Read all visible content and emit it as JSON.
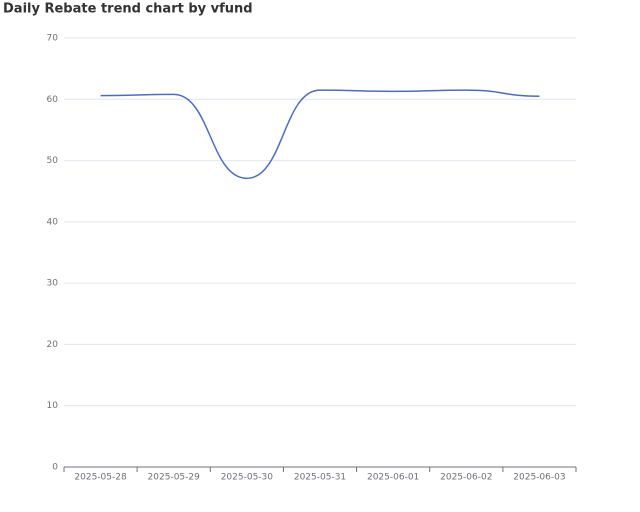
{
  "chart_data": {
    "type": "line",
    "title": "Daily Rebate trend chart by vfund",
    "categories": [
      "2025-05-28",
      "2025-05-29",
      "2025-05-30",
      "2025-05-31",
      "2025-06-01",
      "2025-06-02",
      "2025-06-03"
    ],
    "values": [
      60.6,
      60.8,
      47.1,
      61.5,
      61.3,
      61.5,
      60.5
    ],
    "color": "#4a6cc4",
    "smooth": true,
    "ylim": [
      0,
      70
    ],
    "yticks": [
      0,
      10,
      20,
      30,
      40,
      50,
      60,
      70
    ],
    "grid": true
  }
}
